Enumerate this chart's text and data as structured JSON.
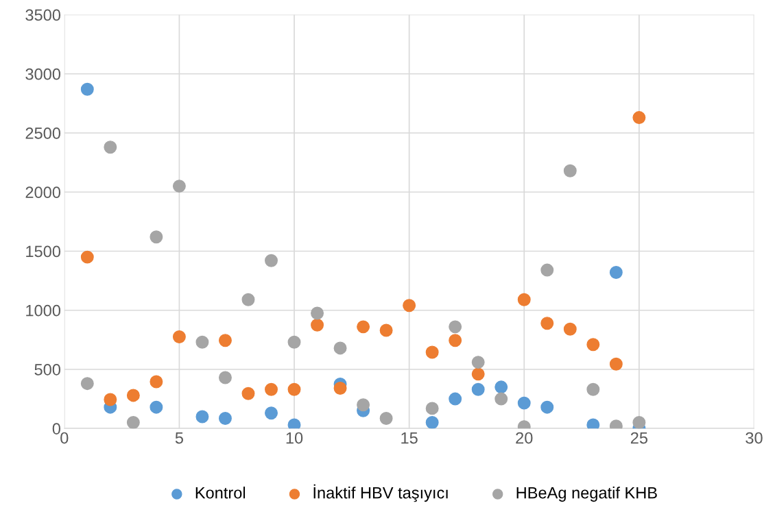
{
  "chart_data": {
    "type": "scatter",
    "x": [
      1,
      2,
      3,
      4,
      5,
      6,
      7,
      8,
      9,
      10,
      11,
      12,
      13,
      14,
      15,
      16,
      17,
      18,
      19,
      20,
      21,
      22,
      23,
      24,
      25
    ],
    "series": [
      {
        "name": "Kontrol",
        "color": "#5b9bd5",
        "values": [
          2870,
          180,
          null,
          180,
          null,
          100,
          85,
          null,
          130,
          30,
          null,
          375,
          150,
          null,
          null,
          50,
          250,
          330,
          350,
          215,
          180,
          null,
          30,
          1320,
          0
        ]
      },
      {
        "name": "İnaktif HBV taşıyıcı",
        "color": "#ed7d31",
        "values": [
          1450,
          245,
          280,
          395,
          775,
          null,
          745,
          295,
          330,
          330,
          875,
          340,
          860,
          830,
          1040,
          645,
          745,
          460,
          null,
          1090,
          890,
          840,
          710,
          545,
          2630
        ]
      },
      {
        "name": "HBeAg negatif KHB",
        "color": "#a5a5a5",
        "values": [
          380,
          2380,
          50,
          1620,
          2050,
          730,
          430,
          1090,
          1420,
          730,
          975,
          680,
          200,
          85,
          null,
          170,
          860,
          560,
          250,
          15,
          1340,
          2180,
          330,
          20,
          50
        ]
      }
    ],
    "xlim": [
      0,
      30
    ],
    "xticks": [
      0,
      5,
      10,
      15,
      20,
      25,
      30
    ],
    "ylim": [
      0,
      3500
    ],
    "yticks": [
      0,
      500,
      1000,
      1500,
      2000,
      2500,
      3000,
      3500
    ],
    "grid": true,
    "legend": "bottom",
    "marker": "circle"
  }
}
